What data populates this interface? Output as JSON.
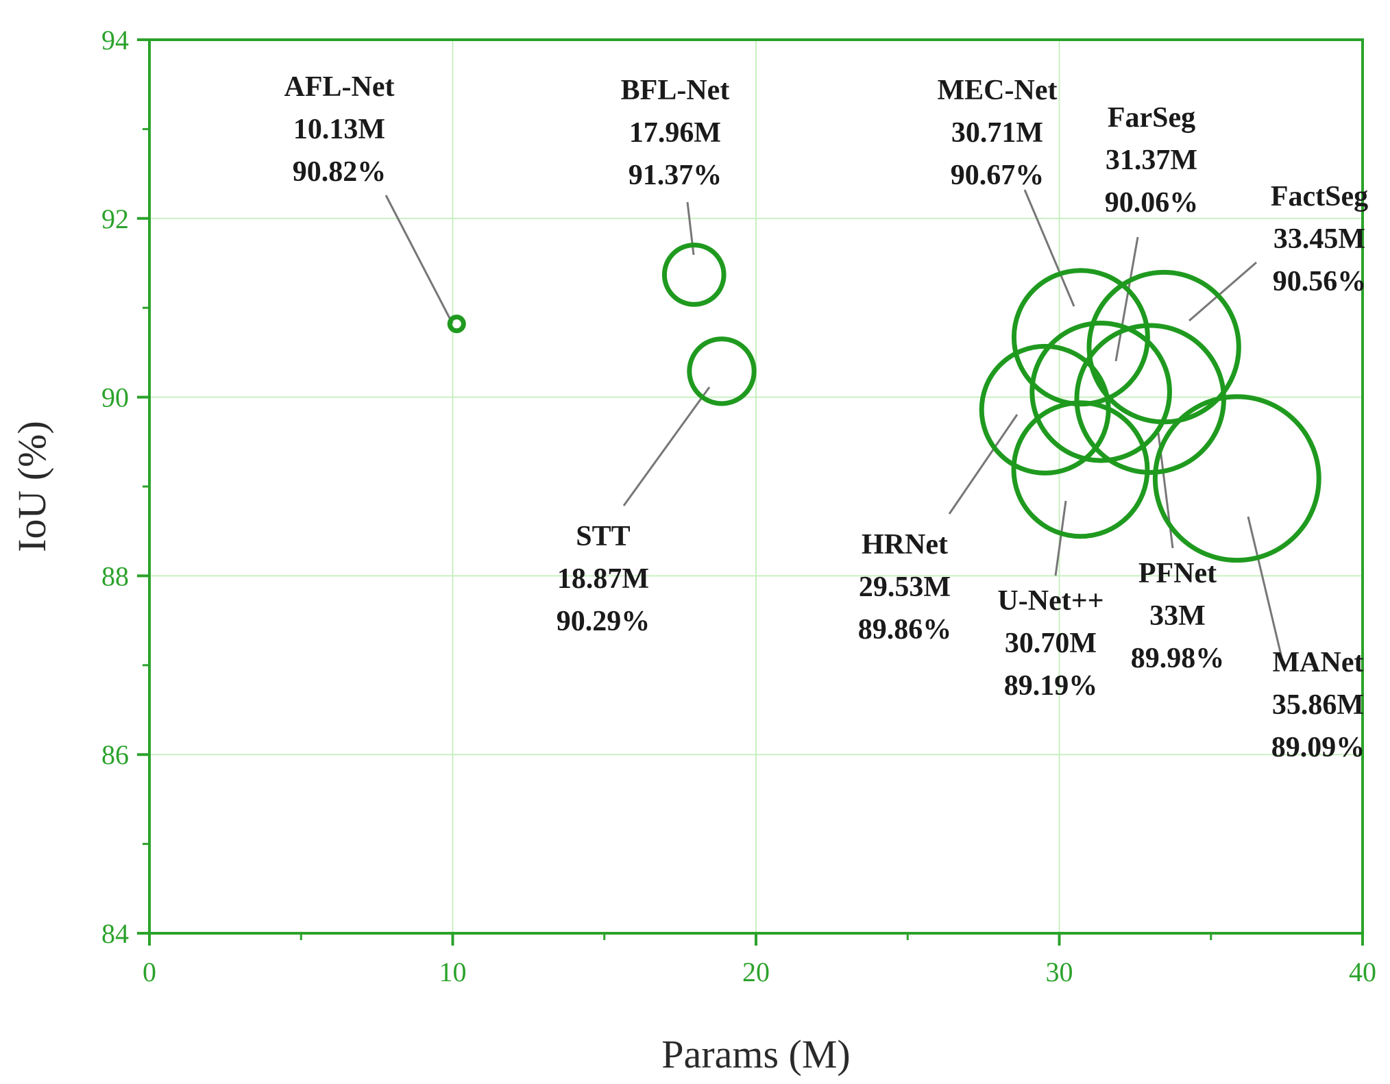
{
  "colors": {
    "accent": "#1f9a1f",
    "axis": "#2ba22b",
    "grid": "#c8f0c0",
    "tick_text": "#2ba22b",
    "leader": "#777777",
    "label_text": "#1a1a1a"
  },
  "chart_data": {
    "type": "scatter",
    "title": "",
    "xlabel": "Params (M)",
    "ylabel": "IoU (%)",
    "xlim": [
      0,
      40
    ],
    "ylim": [
      84,
      94
    ],
    "xticks": [
      "0",
      "10",
      "20",
      "30",
      "40"
    ],
    "yticks": [
      "84",
      "86",
      "88",
      "90",
      "92",
      "94"
    ],
    "grid": true,
    "marker": "circle, size proportional to Params",
    "points": [
      {
        "id": "afl-net",
        "name": "AFL-Net",
        "params": 10.13,
        "iou": 90.82,
        "params_label": "10.13M",
        "iou_label": "90.82%"
      },
      {
        "id": "bfl-net",
        "name": "BFL-Net",
        "params": 17.96,
        "iou": 91.37,
        "params_label": "17.96M",
        "iou_label": "91.37%"
      },
      {
        "id": "stt",
        "name": "STT",
        "params": 18.87,
        "iou": 90.29,
        "params_label": "18.87M",
        "iou_label": "90.29%"
      },
      {
        "id": "mec-net",
        "name": "MEC-Net",
        "params": 30.71,
        "iou": 90.67,
        "params_label": "30.71M",
        "iou_label": "90.67%"
      },
      {
        "id": "farseg",
        "name": "FarSeg",
        "params": 31.37,
        "iou": 90.06,
        "params_label": "31.37M",
        "iou_label": "90.06%"
      },
      {
        "id": "factseg",
        "name": "FactSeg",
        "params": 33.45,
        "iou": 90.56,
        "params_label": "33.45M",
        "iou_label": "90.56%"
      },
      {
        "id": "hrnet",
        "name": "HRNet",
        "params": 29.53,
        "iou": 89.86,
        "params_label": "29.53M",
        "iou_label": "89.86%"
      },
      {
        "id": "unetpp",
        "name": "U-Net++",
        "params": 30.7,
        "iou": 89.19,
        "params_label": "30.70M",
        "iou_label": "89.19%"
      },
      {
        "id": "pfnet",
        "name": "PFNet",
        "params": 33.0,
        "iou": 89.98,
        "params_label": "33M",
        "iou_label": "89.98%"
      },
      {
        "id": "manet",
        "name": "MANet",
        "params": 35.86,
        "iou": 89.09,
        "params_label": "35.86M",
        "iou_label": "89.09%"
      }
    ]
  }
}
